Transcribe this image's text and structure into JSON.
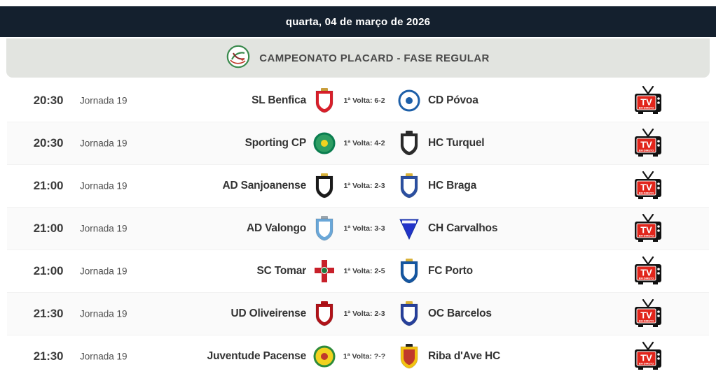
{
  "header": {
    "date_label": "quarta, 04 de março de 2026"
  },
  "banner": {
    "title": "CAMPEONATO PLACARD - FASE REGULAR",
    "logo_icon": "hockey-sticks-roundel"
  },
  "colors": {
    "header_bg": "#14202e",
    "banner_bg": "#e2e4e0",
    "row_alt_bg": "#fafafa",
    "tv_red": "#e1251b",
    "logo_green": "#3a8a4d",
    "logo_red": "#c0392b"
  },
  "tv": {
    "line1": "TV",
    "line2": "EM DIRETO"
  },
  "matches": [
    {
      "time": "20:30",
      "round": "Jornada 19",
      "home": "SL Benfica",
      "away": "CD Póvoa",
      "first_leg": "1ª Volta: 6-2",
      "home_logo": {
        "shape": "shield",
        "colors": [
          "#d81f2a",
          "#ffffff",
          "#c99e3c"
        ]
      },
      "away_logo": {
        "shape": "circle",
        "colors": [
          "#1d5fa8",
          "#ffffff",
          "#1d5fa8"
        ]
      }
    },
    {
      "time": "20:30",
      "round": "Jornada 19",
      "home": "Sporting CP",
      "away": "HC Turquel",
      "first_leg": "1ª Volta: 4-2",
      "home_logo": {
        "shape": "circle",
        "colors": [
          "#0a7d4f",
          "#2e9e63",
          "#f2d21f"
        ]
      },
      "away_logo": {
        "shape": "shield",
        "colors": [
          "#2b2b2b",
          "#ffffff",
          "#2b2b2b"
        ]
      }
    },
    {
      "time": "21:00",
      "round": "Jornada 19",
      "home": "AD Sanjoanense",
      "away": "HC Braga",
      "first_leg": "1ª Volta: 2-3",
      "home_logo": {
        "shape": "shield",
        "colors": [
          "#1a1a1a",
          "#ffffff",
          "#d9b23a"
        ]
      },
      "away_logo": {
        "shape": "shield",
        "colors": [
          "#2b4fa0",
          "#ffffff",
          "#d9b23a"
        ]
      }
    },
    {
      "time": "21:00",
      "round": "Jornada 19",
      "home": "AD Valongo",
      "away": "CH Carvalhos",
      "first_leg": "1ª Volta: 3-3",
      "home_logo": {
        "shape": "shield",
        "colors": [
          "#6aa7d8",
          "#ffffff",
          "#9aa5ad"
        ]
      },
      "away_logo": {
        "shape": "triangle",
        "colors": [
          "#2233c9",
          "#ffffff",
          "#16339e"
        ]
      }
    },
    {
      "time": "21:00",
      "round": "Jornada 19",
      "home": "SC Tomar",
      "away": "FC Porto",
      "first_leg": "1ª Volta: 2-5",
      "home_logo": {
        "shape": "cross",
        "colors": [
          "#c8202a",
          "#1f7a3d",
          "#ffffff"
        ]
      },
      "away_logo": {
        "shape": "shield",
        "colors": [
          "#1556a0",
          "#ffffff",
          "#d9b23a"
        ]
      }
    },
    {
      "time": "21:30",
      "round": "Jornada 19",
      "home": "UD Oliveirense",
      "away": "OC Barcelos",
      "first_leg": "1ª Volta: 2-3",
      "home_logo": {
        "shape": "shield",
        "colors": [
          "#b01218",
          "#ffffff",
          "#b01218"
        ]
      },
      "away_logo": {
        "shape": "shield",
        "colors": [
          "#27409a",
          "#ffffff",
          "#d9b23a"
        ]
      }
    },
    {
      "time": "21:30",
      "round": "Jornada 19",
      "home": "Juventude Pacense",
      "away": "Riba d'Ave HC",
      "first_leg": "1ª Volta: ?-?",
      "home_logo": {
        "shape": "circle",
        "colors": [
          "#2e8b3a",
          "#f2d21f",
          "#c0392b"
        ]
      },
      "away_logo": {
        "shape": "shield",
        "colors": [
          "#f2c211",
          "#c0392b",
          "#222222"
        ]
      }
    }
  ]
}
